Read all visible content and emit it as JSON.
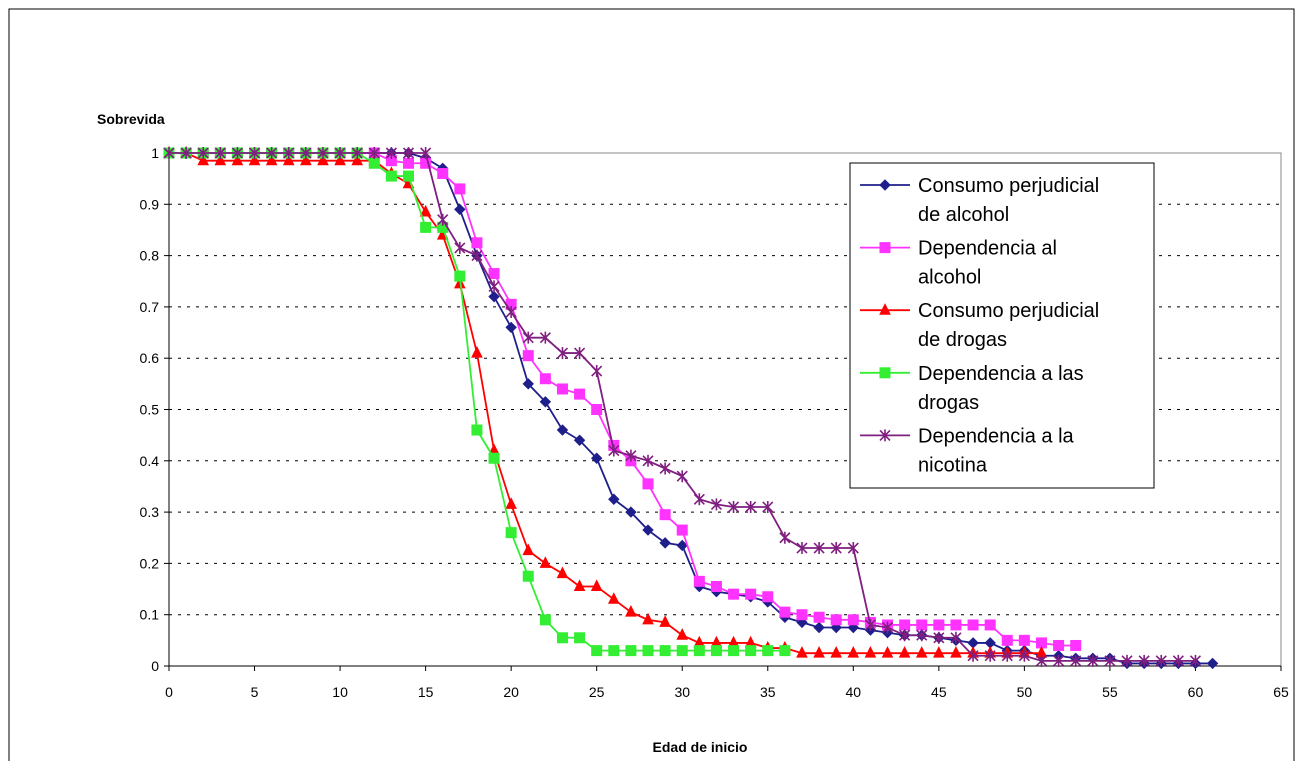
{
  "chart_data": {
    "type": "line",
    "title": "",
    "xlabel": "Edad de inicio",
    "ylabel": "Sobrevida",
    "xlim": [
      0,
      65
    ],
    "ylim": [
      0,
      1
    ],
    "xticks": [
      "0",
      "5",
      "10",
      "15",
      "20",
      "25",
      "30",
      "35",
      "40",
      "45",
      "50",
      "55",
      "60",
      "65"
    ],
    "yticks": [
      "0",
      "0.1",
      "0.2",
      "0.3",
      "0.4",
      "0.5",
      "0.6",
      "0.7",
      "0.8",
      "0.9",
      "1"
    ],
    "grid": "horizontal-dashed",
    "legend_position": "top-right",
    "series": [
      {
        "name": "Consumo perjudicial de alcohol",
        "color": "#1f1f8c",
        "marker": "diamond",
        "x": [
          0,
          1,
          2,
          3,
          4,
          5,
          6,
          7,
          8,
          9,
          10,
          11,
          12,
          13,
          14,
          15,
          16,
          17,
          18,
          19,
          20,
          21,
          22,
          23,
          24,
          25,
          26,
          27,
          28,
          29,
          30,
          31,
          32,
          33,
          34,
          35,
          36,
          37,
          38,
          39,
          40,
          41,
          42,
          43,
          44,
          45,
          46,
          47,
          48,
          49,
          50,
          51,
          52,
          53,
          54,
          55,
          56,
          57,
          58,
          59,
          60,
          61
        ],
        "y": [
          1,
          1,
          1,
          1,
          1,
          1,
          1,
          1,
          1,
          1,
          1,
          1,
          1,
          1,
          1,
          0.99,
          0.97,
          0.89,
          0.8,
          0.72,
          0.66,
          0.55,
          0.515,
          0.46,
          0.44,
          0.405,
          0.325,
          0.3,
          0.265,
          0.24,
          0.235,
          0.155,
          0.145,
          0.14,
          0.135,
          0.125,
          0.095,
          0.085,
          0.075,
          0.075,
          0.075,
          0.07,
          0.065,
          0.06,
          0.06,
          0.055,
          0.05,
          0.045,
          0.045,
          0.03,
          0.03,
          0.02,
          0.02,
          0.015,
          0.015,
          0.015,
          0.005,
          0.005,
          0.005,
          0.005,
          0.005,
          0.005
        ]
      },
      {
        "name": "Dependencia al alcohol",
        "color": "#ff33ff",
        "marker": "square",
        "x": [
          0,
          1,
          2,
          3,
          4,
          5,
          6,
          7,
          8,
          9,
          10,
          11,
          12,
          13,
          14,
          15,
          16,
          17,
          18,
          19,
          20,
          21,
          22,
          23,
          24,
          25,
          26,
          27,
          28,
          29,
          30,
          31,
          32,
          33,
          34,
          35,
          36,
          37,
          38,
          39,
          40,
          41,
          42,
          43,
          44,
          45,
          46,
          47,
          48,
          49,
          50,
          51,
          52,
          53
        ],
        "y": [
          1,
          1,
          1,
          1,
          1,
          1,
          1,
          1,
          1,
          1,
          1,
          1,
          1,
          0.985,
          0.98,
          0.98,
          0.96,
          0.93,
          0.825,
          0.765,
          0.705,
          0.605,
          0.56,
          0.54,
          0.53,
          0.5,
          0.43,
          0.4,
          0.355,
          0.295,
          0.265,
          0.165,
          0.155,
          0.14,
          0.14,
          0.135,
          0.105,
          0.1,
          0.095,
          0.09,
          0.09,
          0.085,
          0.08,
          0.08,
          0.08,
          0.08,
          0.08,
          0.08,
          0.08,
          0.05,
          0.05,
          0.045,
          0.04,
          0.04
        ]
      },
      {
        "name": "Consumo perjudicial de drogas",
        "color": "#ff0000",
        "marker": "triangle",
        "x": [
          0,
          1,
          2,
          3,
          4,
          5,
          6,
          7,
          8,
          9,
          10,
          11,
          12,
          13,
          14,
          15,
          16,
          17,
          18,
          19,
          20,
          21,
          22,
          23,
          24,
          25,
          26,
          27,
          28,
          29,
          30,
          31,
          32,
          33,
          34,
          35,
          36,
          37,
          38,
          39,
          40,
          41,
          42,
          43,
          44,
          45,
          46,
          47,
          48,
          49,
          50,
          51
        ],
        "y": [
          1,
          1,
          0.985,
          0.985,
          0.985,
          0.985,
          0.985,
          0.985,
          0.985,
          0.985,
          0.985,
          0.985,
          0.985,
          0.96,
          0.94,
          0.885,
          0.84,
          0.745,
          0.61,
          0.42,
          0.315,
          0.225,
          0.2,
          0.18,
          0.155,
          0.155,
          0.13,
          0.105,
          0.09,
          0.085,
          0.06,
          0.045,
          0.045,
          0.045,
          0.045,
          0.035,
          0.035,
          0.025,
          0.025,
          0.025,
          0.025,
          0.025,
          0.025,
          0.025,
          0.025,
          0.025,
          0.025,
          0.025,
          0.025,
          0.025,
          0.025,
          0.025
        ]
      },
      {
        "name": "Dependencia a las drogas",
        "color": "#33ee33",
        "marker": "square",
        "x": [
          0,
          1,
          2,
          3,
          4,
          5,
          6,
          7,
          8,
          9,
          10,
          11,
          12,
          13,
          14,
          15,
          16,
          17,
          18,
          19,
          20,
          21,
          22,
          23,
          24,
          25,
          26,
          27,
          28,
          29,
          30,
          31,
          32,
          33,
          34,
          35,
          36
        ],
        "y": [
          1,
          1,
          1,
          1,
          1,
          1,
          1,
          1,
          1,
          1,
          1,
          1,
          0.98,
          0.955,
          0.955,
          0.855,
          0.855,
          0.76,
          0.46,
          0.405,
          0.26,
          0.175,
          0.09,
          0.055,
          0.055,
          0.03,
          0.03,
          0.03,
          0.03,
          0.03,
          0.03,
          0.03,
          0.03,
          0.03,
          0.03,
          0.03,
          0.03
        ]
      },
      {
        "name": "Dependencia a la nicotina",
        "color": "#7f1f7f",
        "marker": "star",
        "x": [
          0,
          1,
          2,
          3,
          4,
          5,
          6,
          7,
          8,
          9,
          10,
          11,
          12,
          13,
          14,
          15,
          16,
          17,
          18,
          19,
          20,
          21,
          22,
          23,
          24,
          25,
          26,
          27,
          28,
          29,
          30,
          31,
          32,
          33,
          34,
          35,
          36,
          37,
          38,
          39,
          40,
          41,
          42,
          43,
          44,
          45,
          46,
          47,
          48,
          49,
          50,
          51,
          52,
          53,
          54,
          55,
          56,
          57,
          58,
          59,
          60
        ],
        "y": [
          1,
          1,
          1,
          1,
          1,
          1,
          1,
          1,
          1,
          1,
          1,
          1,
          1,
          1,
          1,
          1,
          0.87,
          0.815,
          0.8,
          0.74,
          0.69,
          0.64,
          0.64,
          0.61,
          0.61,
          0.575,
          0.42,
          0.41,
          0.4,
          0.385,
          0.37,
          0.325,
          0.315,
          0.31,
          0.31,
          0.31,
          0.25,
          0.23,
          0.23,
          0.23,
          0.23,
          0.08,
          0.075,
          0.06,
          0.06,
          0.055,
          0.055,
          0.02,
          0.02,
          0.02,
          0.02,
          0.01,
          0.01,
          0.01,
          0.01,
          0.01,
          0.01,
          0.01,
          0.01,
          0.01,
          0.01
        ]
      }
    ]
  }
}
